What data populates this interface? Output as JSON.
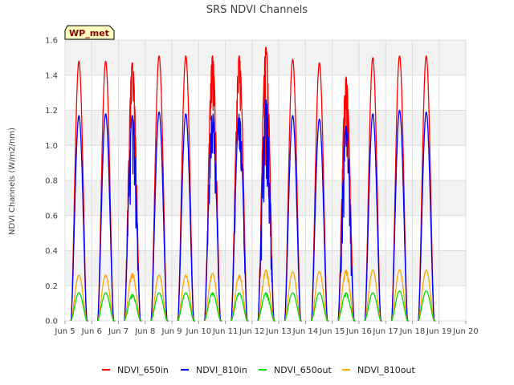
{
  "chart_data": {
    "type": "line",
    "title": "SRS NDVI Channels",
    "xlabel": "",
    "ylabel": "NDVI Channels (W/m2/nm)",
    "badge": "WP_met",
    "xlim": [
      5,
      20
    ],
    "ylim": [
      0.0,
      1.6
    ],
    "x_ticks": [
      5,
      6,
      7,
      8,
      9,
      10,
      11,
      12,
      13,
      14,
      15,
      16,
      17,
      18,
      19,
      20
    ],
    "x_tick_labels": [
      "Jun 5",
      "Jun 6",
      "Jun 7",
      "Jun 8",
      "Jun 9",
      "Jun 10",
      "Jun 11",
      "Jun 12",
      "Jun 13",
      "Jun 14",
      "Jun 15",
      "Jun 16",
      "Jun 17",
      "Jun 18",
      "Jun 19",
      "Jun 20"
    ],
    "y_ticks": [
      0.0,
      0.2,
      0.4,
      0.6,
      0.8,
      1.0,
      1.2,
      1.4,
      1.6
    ],
    "y_tick_labels": [
      "0.0",
      "0.2",
      "0.4",
      "0.6",
      "0.8",
      "1.0",
      "1.2",
      "1.4",
      "1.6"
    ],
    "legend_position": "bottom-center",
    "day_centers": [
      5.52,
      6.52,
      7.52,
      8.52,
      9.52,
      10.52,
      11.52,
      12.52,
      13.52,
      14.52,
      15.52,
      16.52,
      17.52,
      18.52
    ],
    "day_half_width": 0.3,
    "series": [
      {
        "name": "NDVI_650in",
        "color": "#ff0000",
        "daily_peaks": [
          1.48,
          1.48,
          1.47,
          1.51,
          1.51,
          1.51,
          1.51,
          1.56,
          1.49,
          1.47,
          1.39,
          1.5,
          1.51,
          1.51
        ]
      },
      {
        "name": "NDVI_810in",
        "color": "#0000ff",
        "daily_peaks": [
          1.17,
          1.18,
          1.17,
          1.19,
          1.18,
          1.19,
          1.18,
          1.26,
          1.17,
          1.15,
          1.11,
          1.18,
          1.2,
          1.19
        ]
      },
      {
        "name": "NDVI_650out",
        "color": "#00dd00",
        "daily_peaks": [
          0.16,
          0.16,
          0.15,
          0.16,
          0.16,
          0.16,
          0.16,
          0.16,
          0.16,
          0.16,
          0.16,
          0.16,
          0.17,
          0.17
        ]
      },
      {
        "name": "NDVI_810out",
        "color": "#ffa500",
        "daily_peaks": [
          0.26,
          0.26,
          0.27,
          0.26,
          0.26,
          0.27,
          0.26,
          0.29,
          0.28,
          0.28,
          0.29,
          0.29,
          0.29,
          0.29
        ]
      }
    ]
  }
}
